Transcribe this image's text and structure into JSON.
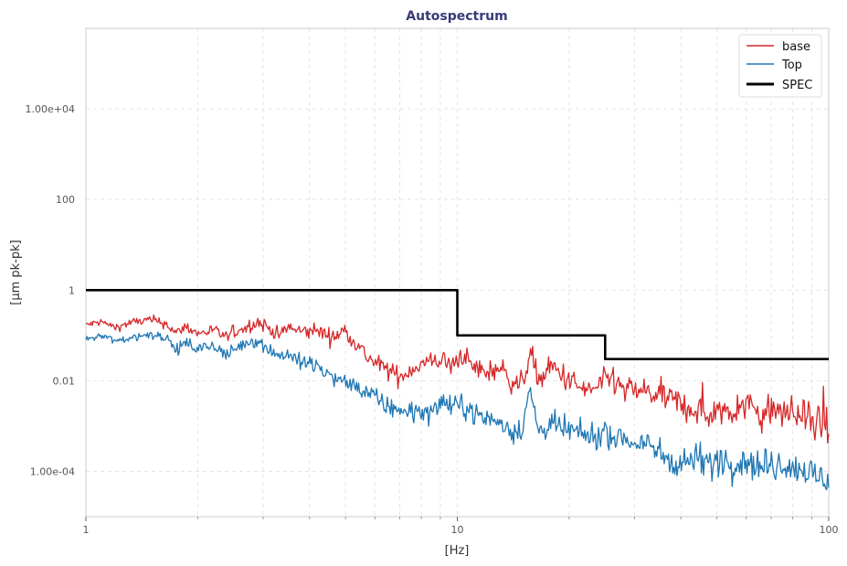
{
  "chart_data": {
    "type": "line",
    "title": "Autospectrum",
    "xlabel": "[Hz]",
    "ylabel": "[µm pk-pk]",
    "x_scale": "log",
    "y_scale": "log",
    "xlim": [
      1,
      100
    ],
    "ylim": [
      1e-05,
      600000
    ],
    "x_ticks": [
      {
        "value": 1,
        "label": "1"
      },
      {
        "value": 10,
        "label": "10"
      },
      {
        "value": 100,
        "label": "100"
      }
    ],
    "y_ticks": [
      {
        "value": 0.0001,
        "label": "1.00e-04"
      },
      {
        "value": 0.01,
        "label": "0.01"
      },
      {
        "value": 1,
        "label": "1"
      },
      {
        "value": 100,
        "label": "100"
      },
      {
        "value": 10000,
        "label": "1.00e+04"
      }
    ],
    "grid": true,
    "legend_position": "top-right",
    "series": [
      {
        "name": "base",
        "color": "#d62728",
        "style": "line",
        "x": [
          1,
          1.1,
          1.2,
          1.35,
          1.5,
          1.65,
          1.75,
          1.85,
          2,
          2.2,
          2.4,
          2.5,
          2.7,
          2.9,
          3.1,
          3.3,
          3.5,
          3.8,
          4.2,
          4.6,
          5,
          5.4,
          5.8,
          6.3,
          7,
          7.7,
          8.3,
          9,
          9.7,
          10.3,
          11,
          12,
          13,
          14,
          15,
          15.7,
          16.5,
          18,
          20,
          22,
          24,
          26,
          28,
          31,
          34,
          37,
          40,
          44,
          48,
          52,
          56,
          61,
          66,
          72,
          78,
          85,
          92,
          100
        ],
        "y": [
          0.17,
          0.2,
          0.15,
          0.2,
          0.22,
          0.18,
          0.11,
          0.16,
          0.11,
          0.13,
          0.09,
          0.12,
          0.15,
          0.2,
          0.15,
          0.1,
          0.15,
          0.12,
          0.13,
          0.09,
          0.13,
          0.06,
          0.03,
          0.02,
          0.012,
          0.02,
          0.025,
          0.03,
          0.02,
          0.04,
          0.02,
          0.015,
          0.02,
          0.01,
          0.008,
          0.05,
          0.01,
          0.02,
          0.01,
          0.006,
          0.007,
          0.012,
          0.006,
          0.006,
          0.005,
          0.004,
          0.003,
          0.0022,
          0.0018,
          0.0025,
          0.0022,
          0.003,
          0.0018,
          0.0022,
          0.002,
          0.0016,
          0.0012,
          0.0009
        ]
      },
      {
        "name": "Top",
        "color": "#1f77b4",
        "style": "line",
        "x": [
          1,
          1.1,
          1.2,
          1.35,
          1.5,
          1.65,
          1.75,
          1.85,
          2,
          2.2,
          2.4,
          2.5,
          2.7,
          2.9,
          3.1,
          3.3,
          3.5,
          3.8,
          4.2,
          4.6,
          5,
          5.4,
          5.8,
          6.3,
          7,
          7.7,
          8.3,
          9,
          9.7,
          10.3,
          11,
          12,
          13,
          14,
          15,
          15.7,
          16.5,
          18,
          20,
          22,
          24,
          26,
          28,
          31,
          34,
          37,
          40,
          44,
          48,
          52,
          56,
          61,
          66,
          72,
          78,
          85,
          92,
          100
        ],
        "y": [
          0.08,
          0.1,
          0.075,
          0.09,
          0.11,
          0.09,
          0.045,
          0.07,
          0.05,
          0.06,
          0.035,
          0.05,
          0.07,
          0.08,
          0.05,
          0.035,
          0.04,
          0.025,
          0.02,
          0.012,
          0.009,
          0.007,
          0.005,
          0.003,
          0.0022,
          0.0022,
          0.0018,
          0.0035,
          0.0025,
          0.003,
          0.002,
          0.0015,
          0.0012,
          0.0008,
          0.0009,
          0.007,
          0.0008,
          0.001,
          0.0008,
          0.0006,
          0.0006,
          0.0007,
          0.0005,
          0.0004,
          0.0003,
          0.0002,
          0.00015,
          0.0002,
          0.00015,
          0.0002,
          0.00015,
          0.00018,
          0.00012,
          0.00015,
          0.00015,
          0.0001,
          8e-05,
          6.5e-05
        ]
      },
      {
        "name": "SPEC",
        "color": "#000000",
        "style": "step",
        "x": [
          1,
          10,
          10,
          25,
          25,
          100
        ],
        "y": [
          1,
          1,
          0.1,
          0.1,
          0.03,
          0.03
        ]
      }
    ]
  }
}
